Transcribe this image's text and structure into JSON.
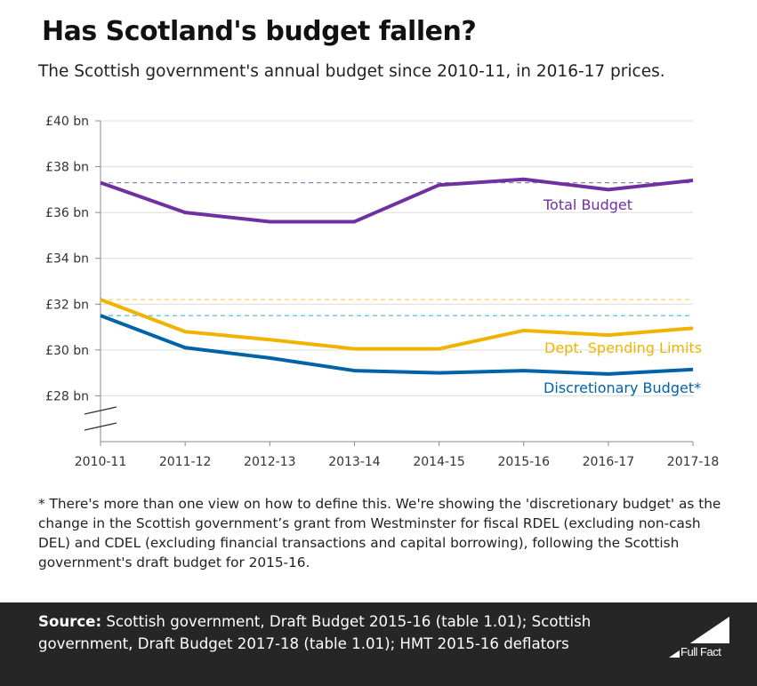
{
  "title": "Has Scotland's budget fallen?",
  "subtitle": "The Scottish government's annual budget since 2010-11, in 2016-17 prices.",
  "note": "* There's more than one view on how to define this. We're showing the 'discretionary budget' as the change in the Scottish government’s grant from Westminster for fiscal RDEL (excluding non-cash DEL) and CDEL (excluding financial transactions and capital borrowing), following the Scottish government's draft budget for 2015-16.",
  "footer": {
    "source_label": "Source:",
    "source_text": "Scottish government, Draft Budget 2015-16 (table 1.01); Scottish government, Draft Budget 2017-18 (table 1.01); HMT 2015-16 deflators",
    "logo_text": "Full Fact"
  },
  "chart_data": {
    "type": "line",
    "title": "Has Scotland's budget fallen?",
    "categories": [
      "2010-11",
      "2011-12",
      "2012-13",
      "2013-14",
      "2014-15",
      "2015-16",
      "2016-17",
      "2017-18"
    ],
    "ylim": [
      26,
      40
    ],
    "axis_break": true,
    "yticks": [
      28,
      30,
      32,
      34,
      36,
      38,
      40
    ],
    "ytick_labels": [
      "£28 bn",
      "£30 bn",
      "£32 bn",
      "£34 bn",
      "£36 bn",
      "£38 bn",
      "£40 bn"
    ],
    "grid": true,
    "series": [
      {
        "name": "Total Budget",
        "color": "#7030a0",
        "baseline_color": "#8a84b8",
        "values": [
          37.3,
          36.0,
          35.6,
          35.6,
          37.2,
          37.45,
          37.0,
          37.4
        ]
      },
      {
        "name": "Dept. Spending Limits",
        "color": "#f0b400",
        "baseline_color": "#f5cf6a",
        "values": [
          32.2,
          30.8,
          30.45,
          30.05,
          30.05,
          30.85,
          30.65,
          30.95
        ]
      },
      {
        "name": "Discretionary Budget*",
        "color": "#0063a8",
        "baseline_color": "#5ec6e0",
        "values": [
          31.5,
          30.1,
          29.65,
          29.1,
          29.0,
          29.1,
          28.95,
          29.15
        ]
      }
    ]
  }
}
